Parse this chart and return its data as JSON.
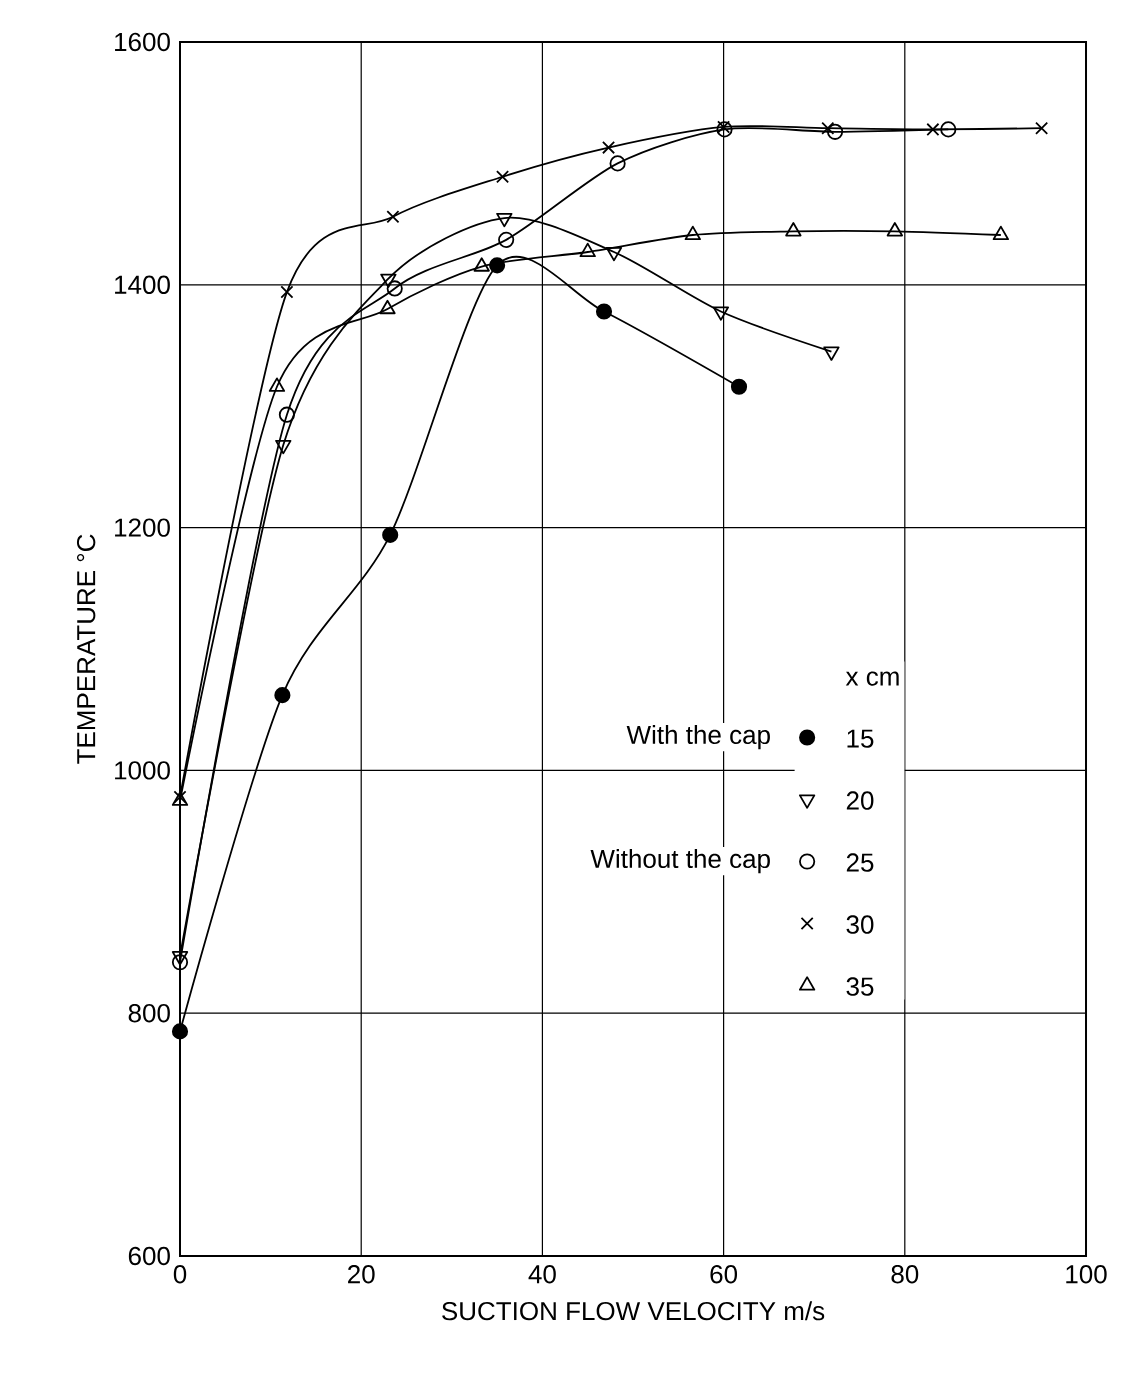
{
  "chart_data": {
    "type": "line",
    "xlabel": "SUCTION FLOW VELOCITY    m/s",
    "ylabel": "TEMPERATURE    °C",
    "legend_title": "x cm",
    "annotations": [
      "With the cap",
      "Without the cap"
    ],
    "xlim": [
      0,
      100
    ],
    "ylim": [
      600,
      1600
    ],
    "xticks": [
      0,
      20,
      40,
      60,
      80,
      100
    ],
    "yticks": [
      600,
      800,
      1000,
      1200,
      1400,
      1600
    ],
    "grid": true,
    "legend": "right",
    "line_style": "solid",
    "series": [
      {
        "name": "15",
        "color": "#000000",
        "marker": "circle",
        "x": [
          0,
          11.3,
          23.2,
          35.0,
          46.8,
          61.7
        ],
        "values": [
          785,
          1062,
          1194,
          1416,
          1378,
          1316
        ]
      },
      {
        "name": "20",
        "color": "#000000",
        "marker": "triangle",
        "x": [
          0,
          11.4,
          23.0,
          35.8,
          47.9,
          59.7,
          71.9
        ],
        "values": [
          847,
          1268,
          1405,
          1455,
          1427,
          1378,
          1345
        ]
      },
      {
        "name": "25",
        "color": "#000000",
        "marker": "circle",
        "x": [
          0,
          11.8,
          23.7,
          36.0,
          48.3,
          60.1,
          72.3,
          84.8
        ],
        "values": [
          842,
          1293,
          1397,
          1437,
          1500,
          1528,
          1526,
          1528
        ]
      },
      {
        "name": "30",
        "color": "#000000",
        "marker": "cross",
        "x": [
          0,
          11.8,
          23.5,
          35.6,
          47.3,
          60.0,
          71.5,
          83.1,
          95.1
        ],
        "values": [
          978,
          1394,
          1456,
          1489,
          1513,
          1530,
          1529,
          1528,
          1529
        ]
      },
      {
        "name": "35",
        "color": "#000000",
        "marker": "triangle",
        "x": [
          0,
          10.7,
          22.9,
          33.3,
          45.0,
          56.6,
          67.7,
          78.9,
          90.6
        ],
        "values": [
          975,
          1316,
          1380,
          1415,
          1427,
          1441,
          1444,
          1444,
          1441
        ]
      }
    ]
  }
}
